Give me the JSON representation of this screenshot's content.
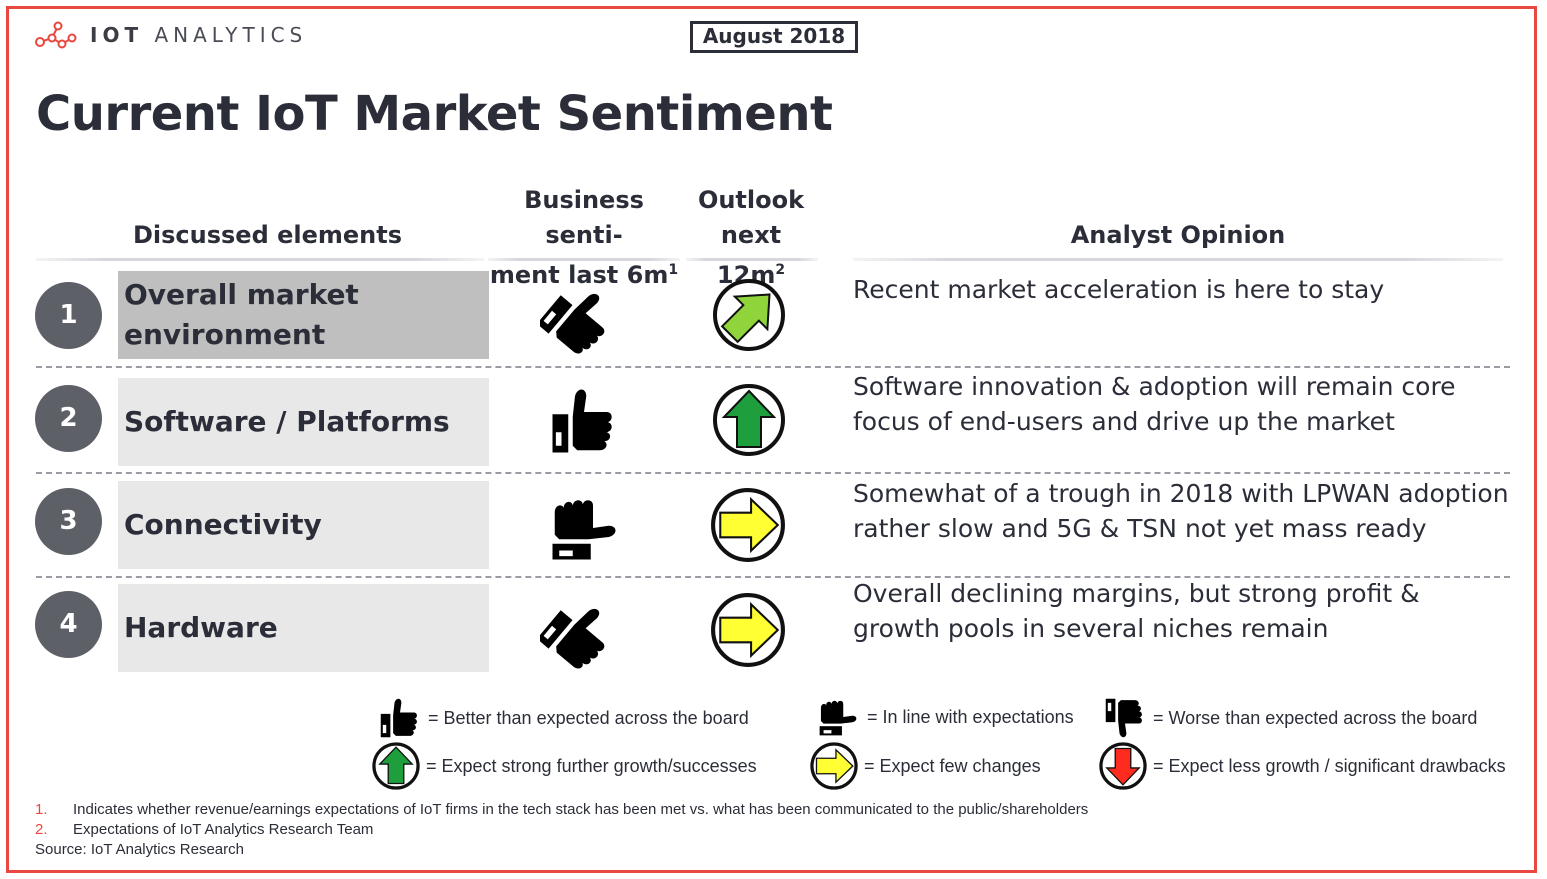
{
  "header": {
    "logo_bold": "IOT",
    "logo_light": "ANALYTICS",
    "date": "August 2018",
    "title": "Current IoT Market Sentiment"
  },
  "columns": {
    "elements": "Discussed elements",
    "sentiment_line1": "Business senti-",
    "sentiment_line2": "ment last 6m",
    "sentiment_sup": "1",
    "outlook_line1": "Outlook",
    "outlook_line2": "next 12m",
    "outlook_sup": "2",
    "opinion": "Analyst Opinion"
  },
  "rows": [
    {
      "number": "1",
      "element": "Overall market environment",
      "sentiment": "thumb-up-tilted",
      "outlook": "green-diagonal-up",
      "opinion_line1": "Recent market acceleration is here to stay",
      "opinion_line2": ""
    },
    {
      "number": "2",
      "element": "Software / Platforms",
      "sentiment": "thumb-up",
      "outlook": "green-up",
      "opinion_line1": "Software innovation & adoption will remain core",
      "opinion_line2": "focus of end-users and drive up the market"
    },
    {
      "number": "3",
      "element": "Connectivity",
      "sentiment": "thumb-sideways",
      "outlook": "yellow-right",
      "opinion_line1": "Somewhat of a trough in 2018 with LPWAN adoption",
      "opinion_line2": "rather slow and 5G & TSN not yet mass ready"
    },
    {
      "number": "4",
      "element": "Hardware",
      "sentiment": "thumb-up-tilted",
      "outlook": "yellow-right",
      "opinion_line1": "Overall declining margins, but strong profit &",
      "opinion_line2": "growth pools in several niches remain"
    }
  ],
  "legend": {
    "thumb_up": "= Better than expected across the board",
    "thumb_side": "= In line with expectations",
    "thumb_down": "= Worse than expected across the board",
    "arrow_up": "= Expect strong further growth/successes",
    "arrow_right": "= Expect few changes",
    "arrow_down": "= Expect less growth / significant drawbacks"
  },
  "footnotes": {
    "n1": "1.",
    "t1": "Indicates whether revenue/earnings expectations of IoT firms in the tech stack has been met vs. what has been communicated to the public/shareholders",
    "n2": "2.",
    "t2": "Expectations of IoT Analytics Research Team",
    "source": "Source: IoT Analytics Research"
  },
  "colors": {
    "frame": "#e8483f",
    "green": "#1e9e3c",
    "light_green": "#8ed43a",
    "yellow": "#ffff33",
    "red": "#ff2b1f"
  }
}
